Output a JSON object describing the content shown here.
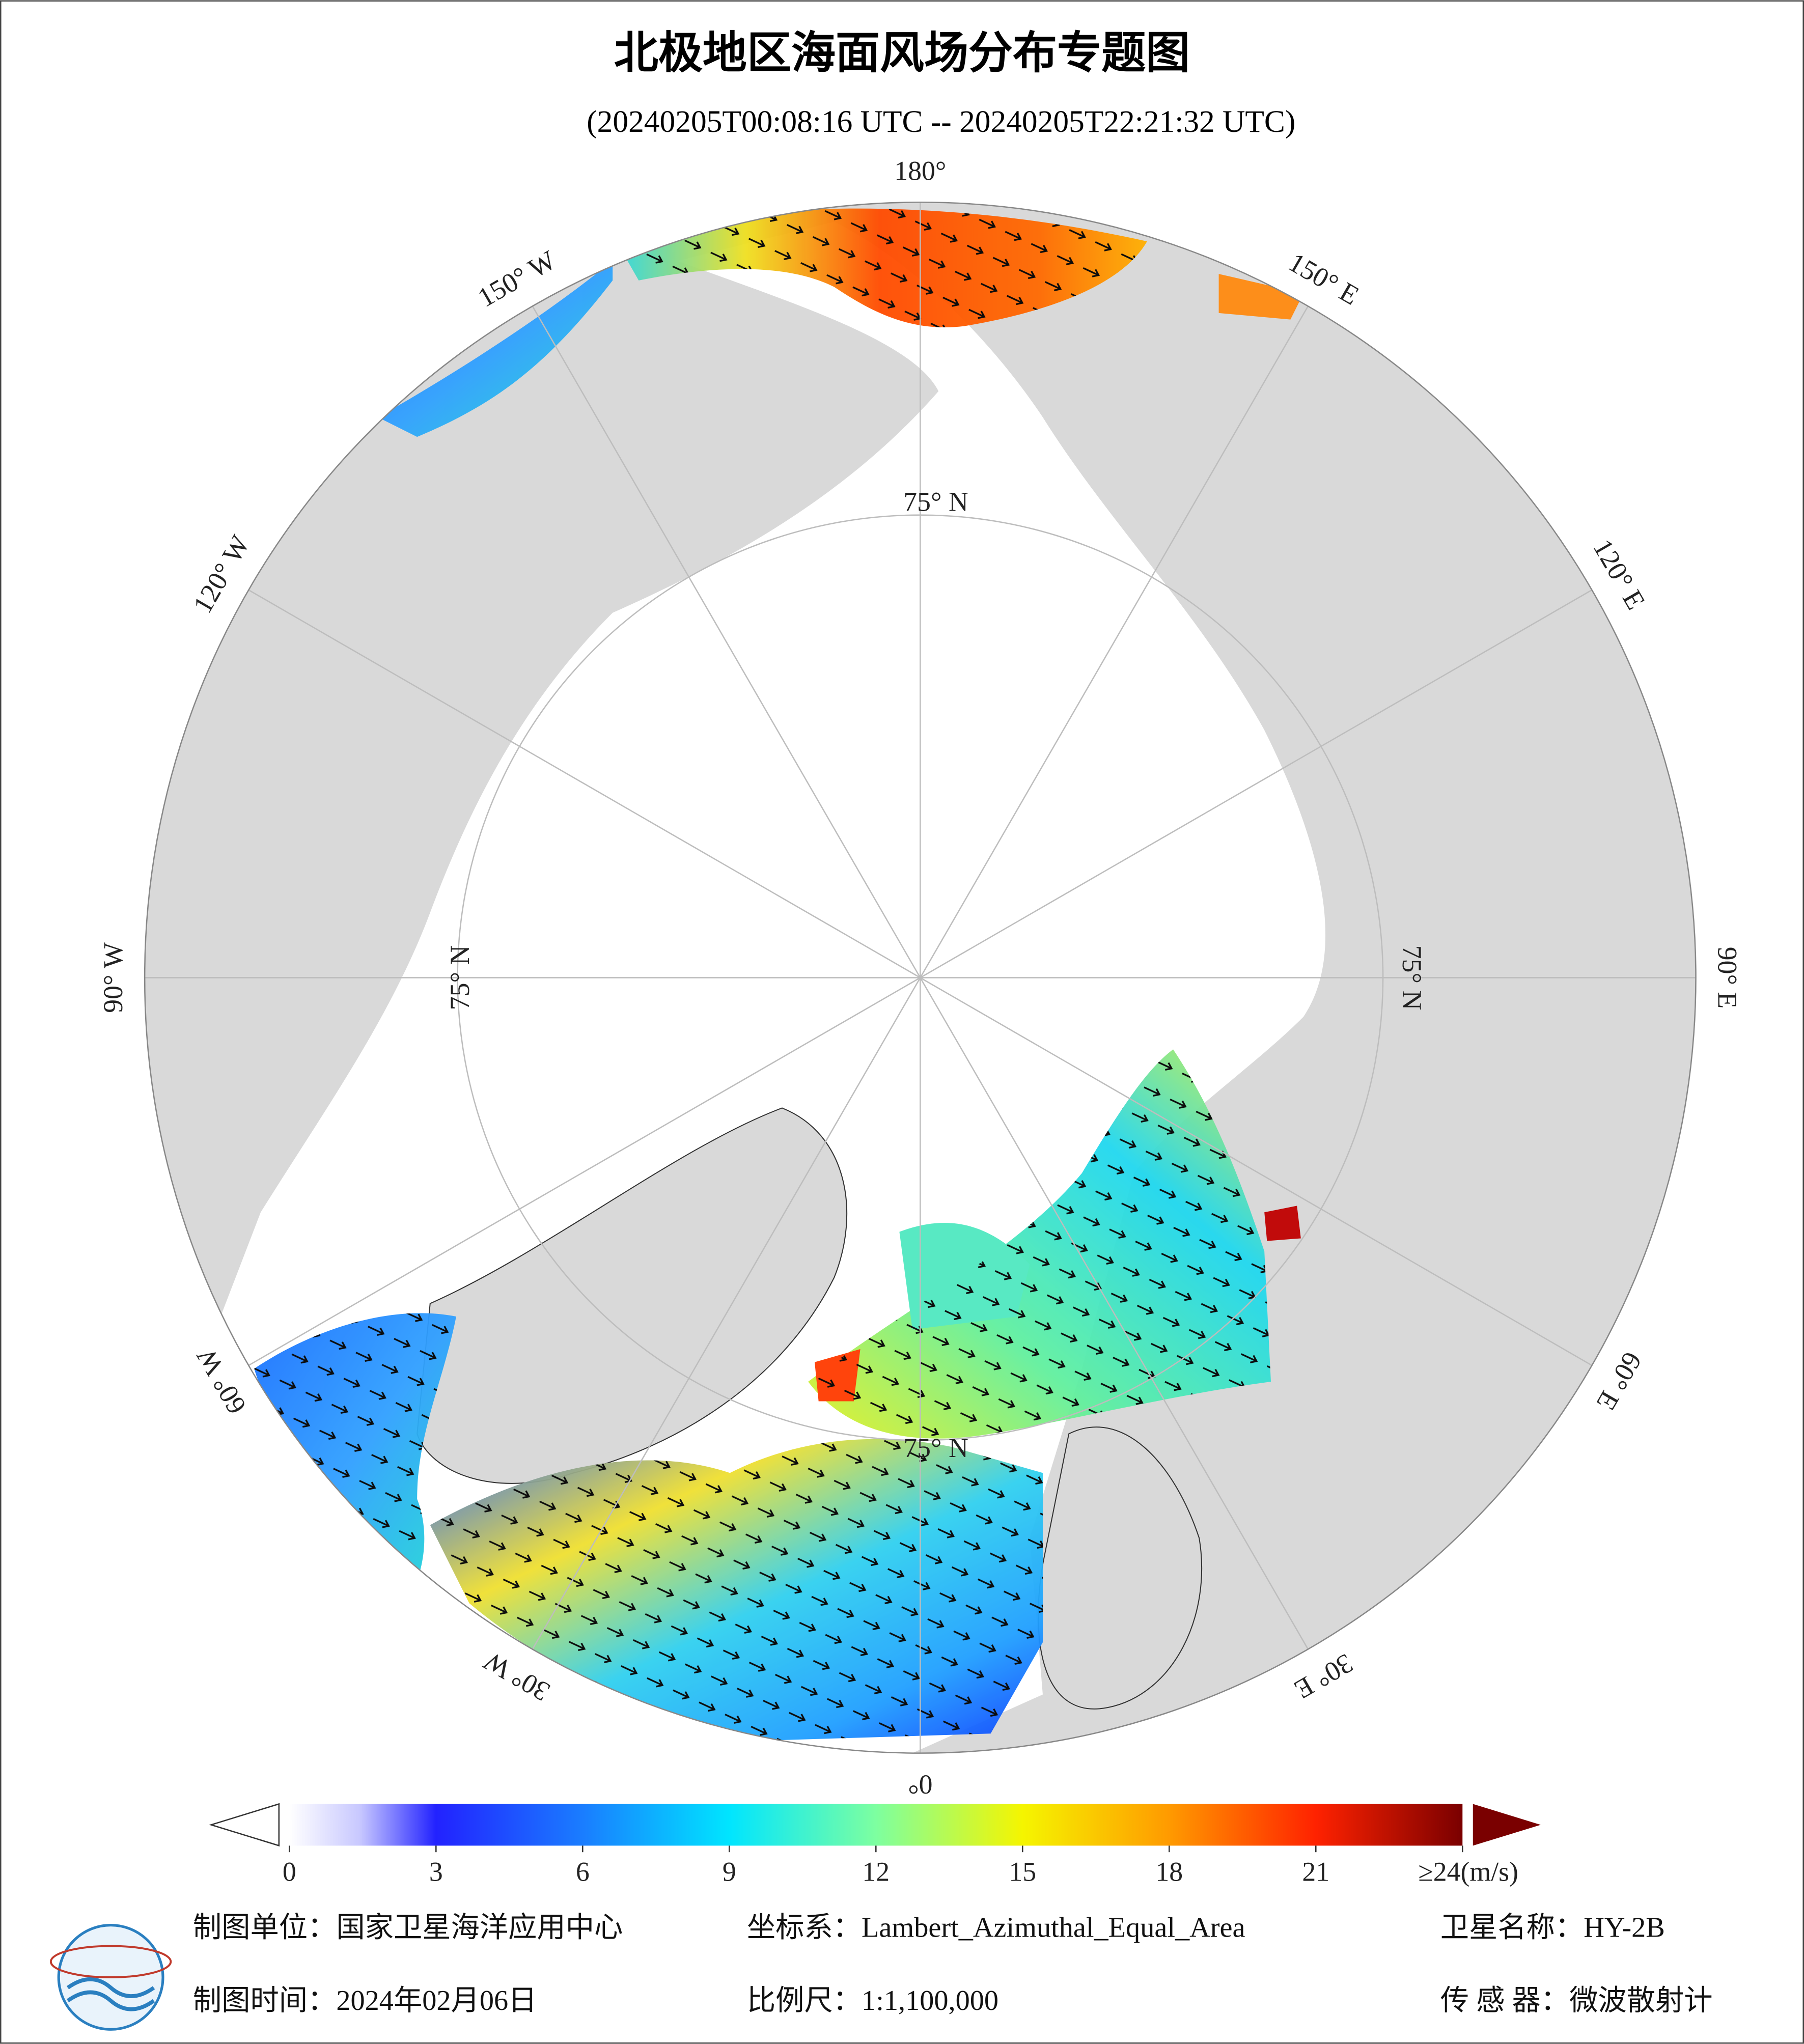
{
  "header": {
    "title": "北极地区海面风场分布专题图",
    "subtitle": "(20240205T00:08:16 UTC -- 20240205T22:21:32 UTC)"
  },
  "map": {
    "longitude_labels": [
      "180°",
      "150° E",
      "120° E",
      "90° E",
      "60° E",
      "30° E",
      "0°",
      "30° W",
      "60° W",
      "90° W",
      "120° W",
      "150° W"
    ],
    "latitude_labels": [
      "75° N",
      "75° N",
      "75° N",
      "75° N"
    ]
  },
  "colorbar": {
    "lim": [
      0,
      24
    ],
    "ticks": [
      0,
      3,
      6,
      9,
      12,
      15,
      18,
      21,
      {
        "value": 24,
        "label": "≥24(m/s)"
      }
    ]
  },
  "footer": {
    "rows": [
      [
        "制图单位：国家卫星海洋应用中心",
        "坐标系：Lambert_Azimuthal_Equal_Area",
        "卫星名称：HY-2B"
      ],
      [
        "制图时间：2024年02月06日",
        "比例尺：1:1,100,000",
        "传 感 器：微波散射计"
      ]
    ]
  }
}
